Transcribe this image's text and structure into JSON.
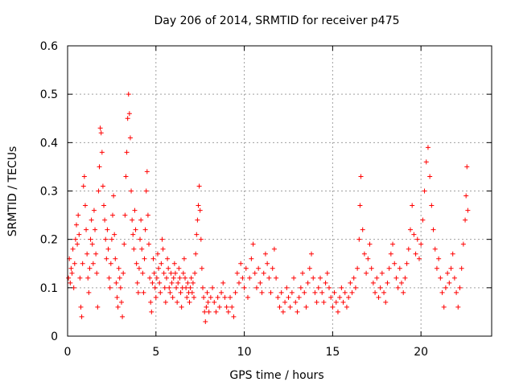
{
  "chart_data": {
    "type": "scatter",
    "title": "Day 206 of 2014, SRMTID for receiver p475",
    "xlabel": "GPS time / hours",
    "ylabel": "SRMTID / TECUs",
    "xlim": [
      0,
      24
    ],
    "ylim": [
      0,
      0.6
    ],
    "x_ticks": [
      0,
      5,
      10,
      15,
      20
    ],
    "x_tick_labels": [
      "0",
      "5",
      "10",
      "15",
      "20"
    ],
    "y_ticks": [
      0,
      0.1,
      0.2,
      0.3,
      0.4,
      0.5,
      0.6
    ],
    "y_tick_labels": [
      "0",
      "0.1",
      "0.2",
      "0.3",
      "0.4",
      "0.5",
      "0.6"
    ],
    "grid": true,
    "marker": "+",
    "color": "#ff0000",
    "series": [
      {
        "name": "SRMTID",
        "points": [
          [
            0.05,
            0.12
          ],
          [
            0.1,
            0.16
          ],
          [
            0.15,
            0.11
          ],
          [
            0.2,
            0.14
          ],
          [
            0.25,
            0.13
          ],
          [
            0.3,
            0.18
          ],
          [
            0.35,
            0.1
          ],
          [
            0.4,
            0.15
          ],
          [
            0.45,
            0.2
          ],
          [
            0.5,
            0.23
          ],
          [
            0.55,
            0.19
          ],
          [
            0.6,
            0.25
          ],
          [
            0.65,
            0.21
          ],
          [
            0.7,
            0.12
          ],
          [
            0.75,
            0.06
          ],
          [
            0.8,
            0.04
          ],
          [
            0.85,
            0.15
          ],
          [
            0.9,
            0.31
          ],
          [
            0.95,
            0.33
          ],
          [
            1.0,
            0.27
          ],
          [
            1.05,
            0.22
          ],
          [
            1.1,
            0.17
          ],
          [
            1.15,
            0.12
          ],
          [
            1.2,
            0.09
          ],
          [
            1.25,
            0.14
          ],
          [
            1.3,
            0.2
          ],
          [
            1.35,
            0.24
          ],
          [
            1.4,
            0.19
          ],
          [
            1.45,
            0.15
          ],
          [
            1.5,
            0.26
          ],
          [
            1.55,
            0.22
          ],
          [
            1.6,
            0.17
          ],
          [
            1.65,
            0.13
          ],
          [
            1.7,
            0.06
          ],
          [
            1.75,
            0.3
          ],
          [
            1.8,
            0.35
          ],
          [
            1.85,
            0.43
          ],
          [
            1.9,
            0.42
          ],
          [
            1.95,
            0.38
          ],
          [
            2.0,
            0.31
          ],
          [
            2.05,
            0.27
          ],
          [
            2.1,
            0.24
          ],
          [
            2.15,
            0.2
          ],
          [
            2.2,
            0.16
          ],
          [
            2.25,
            0.22
          ],
          [
            2.3,
            0.18
          ],
          [
            2.35,
            0.12
          ],
          [
            2.4,
            0.1
          ],
          [
            2.45,
            0.15
          ],
          [
            2.5,
            0.2
          ],
          [
            2.55,
            0.25
          ],
          [
            2.6,
            0.29
          ],
          [
            2.65,
            0.21
          ],
          [
            2.7,
            0.16
          ],
          [
            2.75,
            0.11
          ],
          [
            2.8,
            0.08
          ],
          [
            2.85,
            0.06
          ],
          [
            2.9,
            0.14
          ],
          [
            2.95,
            0.12
          ],
          [
            3.0,
            0.1
          ],
          [
            3.05,
            0.07
          ],
          [
            3.1,
            0.04
          ],
          [
            3.15,
            0.13
          ],
          [
            3.2,
            0.19
          ],
          [
            3.25,
            0.25
          ],
          [
            3.3,
            0.33
          ],
          [
            3.35,
            0.38
          ],
          [
            3.4,
            0.45
          ],
          [
            3.45,
            0.5
          ],
          [
            3.5,
            0.46
          ],
          [
            3.55,
            0.41
          ],
          [
            3.6,
            0.3
          ],
          [
            3.65,
            0.24
          ],
          [
            3.7,
            0.21
          ],
          [
            3.75,
            0.18
          ],
          [
            3.8,
            0.26
          ],
          [
            3.85,
            0.22
          ],
          [
            3.9,
            0.15
          ],
          [
            3.95,
            0.11
          ],
          [
            4.0,
            0.09
          ],
          [
            4.05,
            0.14
          ],
          [
            4.1,
            0.2
          ],
          [
            4.15,
            0.24
          ],
          [
            4.2,
            0.18
          ],
          [
            4.25,
            0.13
          ],
          [
            4.3,
            0.09
          ],
          [
            4.35,
            0.16
          ],
          [
            4.4,
            0.22
          ],
          [
            4.45,
            0.3
          ],
          [
            4.5,
            0.34
          ],
          [
            4.55,
            0.25
          ],
          [
            4.6,
            0.19
          ],
          [
            4.65,
            0.12
          ],
          [
            4.7,
            0.07
          ],
          [
            4.75,
            0.05
          ],
          [
            4.8,
            0.11
          ],
          [
            4.85,
            0.16
          ],
          [
            4.9,
            0.13
          ],
          [
            4.95,
            0.1
          ],
          [
            5.0,
            0.08
          ],
          [
            5.05,
            0.12
          ],
          [
            5.1,
            0.17
          ],
          [
            5.15,
            0.14
          ],
          [
            5.2,
            0.11
          ],
          [
            5.25,
            0.09
          ],
          [
            5.3,
            0.15
          ],
          [
            5.35,
            0.2
          ],
          [
            5.4,
            0.18
          ],
          [
            5.45,
            0.13
          ],
          [
            5.5,
            0.1
          ],
          [
            5.55,
            0.07
          ],
          [
            5.6,
            0.12
          ],
          [
            5.65,
            0.16
          ],
          [
            5.7,
            0.14
          ],
          [
            5.75,
            0.1
          ],
          [
            5.8,
            0.09
          ],
          [
            5.85,
            0.13
          ],
          [
            5.9,
            0.11
          ],
          [
            5.95,
            0.08
          ],
          [
            6.0,
            0.12
          ],
          [
            6.05,
            0.15
          ],
          [
            6.1,
            0.13
          ],
          [
            6.15,
            0.1
          ],
          [
            6.2,
            0.07
          ],
          [
            6.25,
            0.11
          ],
          [
            6.3,
            0.14
          ],
          [
            6.35,
            0.12
          ],
          [
            6.4,
            0.09
          ],
          [
            6.45,
            0.06
          ],
          [
            6.5,
            0.1
          ],
          [
            6.55,
            0.13
          ],
          [
            6.6,
            0.16
          ],
          [
            6.65,
            0.12
          ],
          [
            6.7,
            0.1
          ],
          [
            6.75,
            0.08
          ],
          [
            6.8,
            0.11
          ],
          [
            6.85,
            0.09
          ],
          [
            6.9,
            0.07
          ],
          [
            6.95,
            0.1
          ],
          [
            7.0,
            0.12
          ],
          [
            7.05,
            0.09
          ],
          [
            7.1,
            0.11
          ],
          [
            7.15,
            0.08
          ],
          [
            7.2,
            0.13
          ],
          [
            7.25,
            0.17
          ],
          [
            7.3,
            0.21
          ],
          [
            7.35,
            0.24
          ],
          [
            7.4,
            0.27
          ],
          [
            7.45,
            0.31
          ],
          [
            7.5,
            0.26
          ],
          [
            7.55,
            0.2
          ],
          [
            7.6,
            0.14
          ],
          [
            7.65,
            0.1
          ],
          [
            7.7,
            0.08
          ],
          [
            7.75,
            0.05
          ],
          [
            7.8,
            0.03
          ],
          [
            7.85,
            0.06
          ],
          [
            7.9,
            0.09
          ],
          [
            7.95,
            0.07
          ],
          [
            8.0,
            0.05
          ],
          [
            8.1,
            0.08
          ],
          [
            8.2,
            0.1
          ],
          [
            8.3,
            0.07
          ],
          [
            8.4,
            0.05
          ],
          [
            8.5,
            0.08
          ],
          [
            8.6,
            0.06
          ],
          [
            8.7,
            0.09
          ],
          [
            8.8,
            0.11
          ],
          [
            8.9,
            0.08
          ],
          [
            9.0,
            0.06
          ],
          [
            9.1,
            0.05
          ],
          [
            9.2,
            0.08
          ],
          [
            9.3,
            0.06
          ],
          [
            9.4,
            0.04
          ],
          [
            9.5,
            0.09
          ],
          [
            9.6,
            0.13
          ],
          [
            9.7,
            0.11
          ],
          [
            9.8,
            0.15
          ],
          [
            9.9,
            0.12
          ],
          [
            10.0,
            0.1
          ],
          [
            10.1,
            0.14
          ],
          [
            10.2,
            0.08
          ],
          [
            10.3,
            0.12
          ],
          [
            10.4,
            0.16
          ],
          [
            10.5,
            0.19
          ],
          [
            10.6,
            0.13
          ],
          [
            10.7,
            0.1
          ],
          [
            10.8,
            0.14
          ],
          [
            10.9,
            0.11
          ],
          [
            11.0,
            0.09
          ],
          [
            11.1,
            0.13
          ],
          [
            11.2,
            0.17
          ],
          [
            11.3,
            0.15
          ],
          [
            11.4,
            0.12
          ],
          [
            11.5,
            0.09
          ],
          [
            11.6,
            0.14
          ],
          [
            11.7,
            0.18
          ],
          [
            11.8,
            0.12
          ],
          [
            11.9,
            0.08
          ],
          [
            12.0,
            0.06
          ],
          [
            12.1,
            0.09
          ],
          [
            12.2,
            0.05
          ],
          [
            12.3,
            0.07
          ],
          [
            12.4,
            0.1
          ],
          [
            12.5,
            0.08
          ],
          [
            12.6,
            0.06
          ],
          [
            12.7,
            0.09
          ],
          [
            12.8,
            0.12
          ],
          [
            12.9,
            0.07
          ],
          [
            13.0,
            0.05
          ],
          [
            13.1,
            0.08
          ],
          [
            13.2,
            0.1
          ],
          [
            13.3,
            0.13
          ],
          [
            13.4,
            0.09
          ],
          [
            13.5,
            0.06
          ],
          [
            13.6,
            0.11
          ],
          [
            13.7,
            0.14
          ],
          [
            13.8,
            0.17
          ],
          [
            13.9,
            0.12
          ],
          [
            14.0,
            0.09
          ],
          [
            14.1,
            0.07
          ],
          [
            14.2,
            0.1
          ],
          [
            14.3,
            0.12
          ],
          [
            14.4,
            0.09
          ],
          [
            14.5,
            0.07
          ],
          [
            14.6,
            0.11
          ],
          [
            14.7,
            0.13
          ],
          [
            14.8,
            0.1
          ],
          [
            14.9,
            0.08
          ],
          [
            15.0,
            0.06
          ],
          [
            15.1,
            0.09
          ],
          [
            15.2,
            0.07
          ],
          [
            15.3,
            0.05
          ],
          [
            15.4,
            0.08
          ],
          [
            15.5,
            0.1
          ],
          [
            15.6,
            0.07
          ],
          [
            15.7,
            0.09
          ],
          [
            15.8,
            0.06
          ],
          [
            15.9,
            0.08
          ],
          [
            16.0,
            0.11
          ],
          [
            16.1,
            0.09
          ],
          [
            16.2,
            0.12
          ],
          [
            16.3,
            0.1
          ],
          [
            16.4,
            0.14
          ],
          [
            16.5,
            0.2
          ],
          [
            16.55,
            0.27
          ],
          [
            16.6,
            0.33
          ],
          [
            16.7,
            0.22
          ],
          [
            16.8,
            0.17
          ],
          [
            16.9,
            0.13
          ],
          [
            17.0,
            0.16
          ],
          [
            17.1,
            0.19
          ],
          [
            17.2,
            0.14
          ],
          [
            17.3,
            0.11
          ],
          [
            17.4,
            0.09
          ],
          [
            17.5,
            0.12
          ],
          [
            17.6,
            0.08
          ],
          [
            17.7,
            0.1
          ],
          [
            17.8,
            0.13
          ],
          [
            17.9,
            0.09
          ],
          [
            18.0,
            0.07
          ],
          [
            18.1,
            0.11
          ],
          [
            18.2,
            0.14
          ],
          [
            18.3,
            0.17
          ],
          [
            18.4,
            0.19
          ],
          [
            18.5,
            0.15
          ],
          [
            18.6,
            0.12
          ],
          [
            18.7,
            0.1
          ],
          [
            18.8,
            0.14
          ],
          [
            18.9,
            0.11
          ],
          [
            19.0,
            0.09
          ],
          [
            19.1,
            0.12
          ],
          [
            19.2,
            0.15
          ],
          [
            19.3,
            0.18
          ],
          [
            19.4,
            0.22
          ],
          [
            19.5,
            0.27
          ],
          [
            19.6,
            0.21
          ],
          [
            19.7,
            0.17
          ],
          [
            19.8,
            0.2
          ],
          [
            19.9,
            0.16
          ],
          [
            20.0,
            0.19
          ],
          [
            20.1,
            0.24
          ],
          [
            20.2,
            0.3
          ],
          [
            20.3,
            0.36
          ],
          [
            20.4,
            0.39
          ],
          [
            20.5,
            0.33
          ],
          [
            20.6,
            0.27
          ],
          [
            20.7,
            0.22
          ],
          [
            20.8,
            0.18
          ],
          [
            20.9,
            0.14
          ],
          [
            21.0,
            0.16
          ],
          [
            21.1,
            0.12
          ],
          [
            21.2,
            0.09
          ],
          [
            21.3,
            0.06
          ],
          [
            21.4,
            0.1
          ],
          [
            21.5,
            0.13
          ],
          [
            21.6,
            0.11
          ],
          [
            21.7,
            0.14
          ],
          [
            21.8,
            0.17
          ],
          [
            21.9,
            0.12
          ],
          [
            22.0,
            0.09
          ],
          [
            22.1,
            0.06
          ],
          [
            22.2,
            0.1
          ],
          [
            22.3,
            0.14
          ],
          [
            22.4,
            0.19
          ],
          [
            22.5,
            0.24
          ],
          [
            22.55,
            0.29
          ],
          [
            22.6,
            0.35
          ],
          [
            22.65,
            0.26
          ]
        ]
      }
    ]
  }
}
